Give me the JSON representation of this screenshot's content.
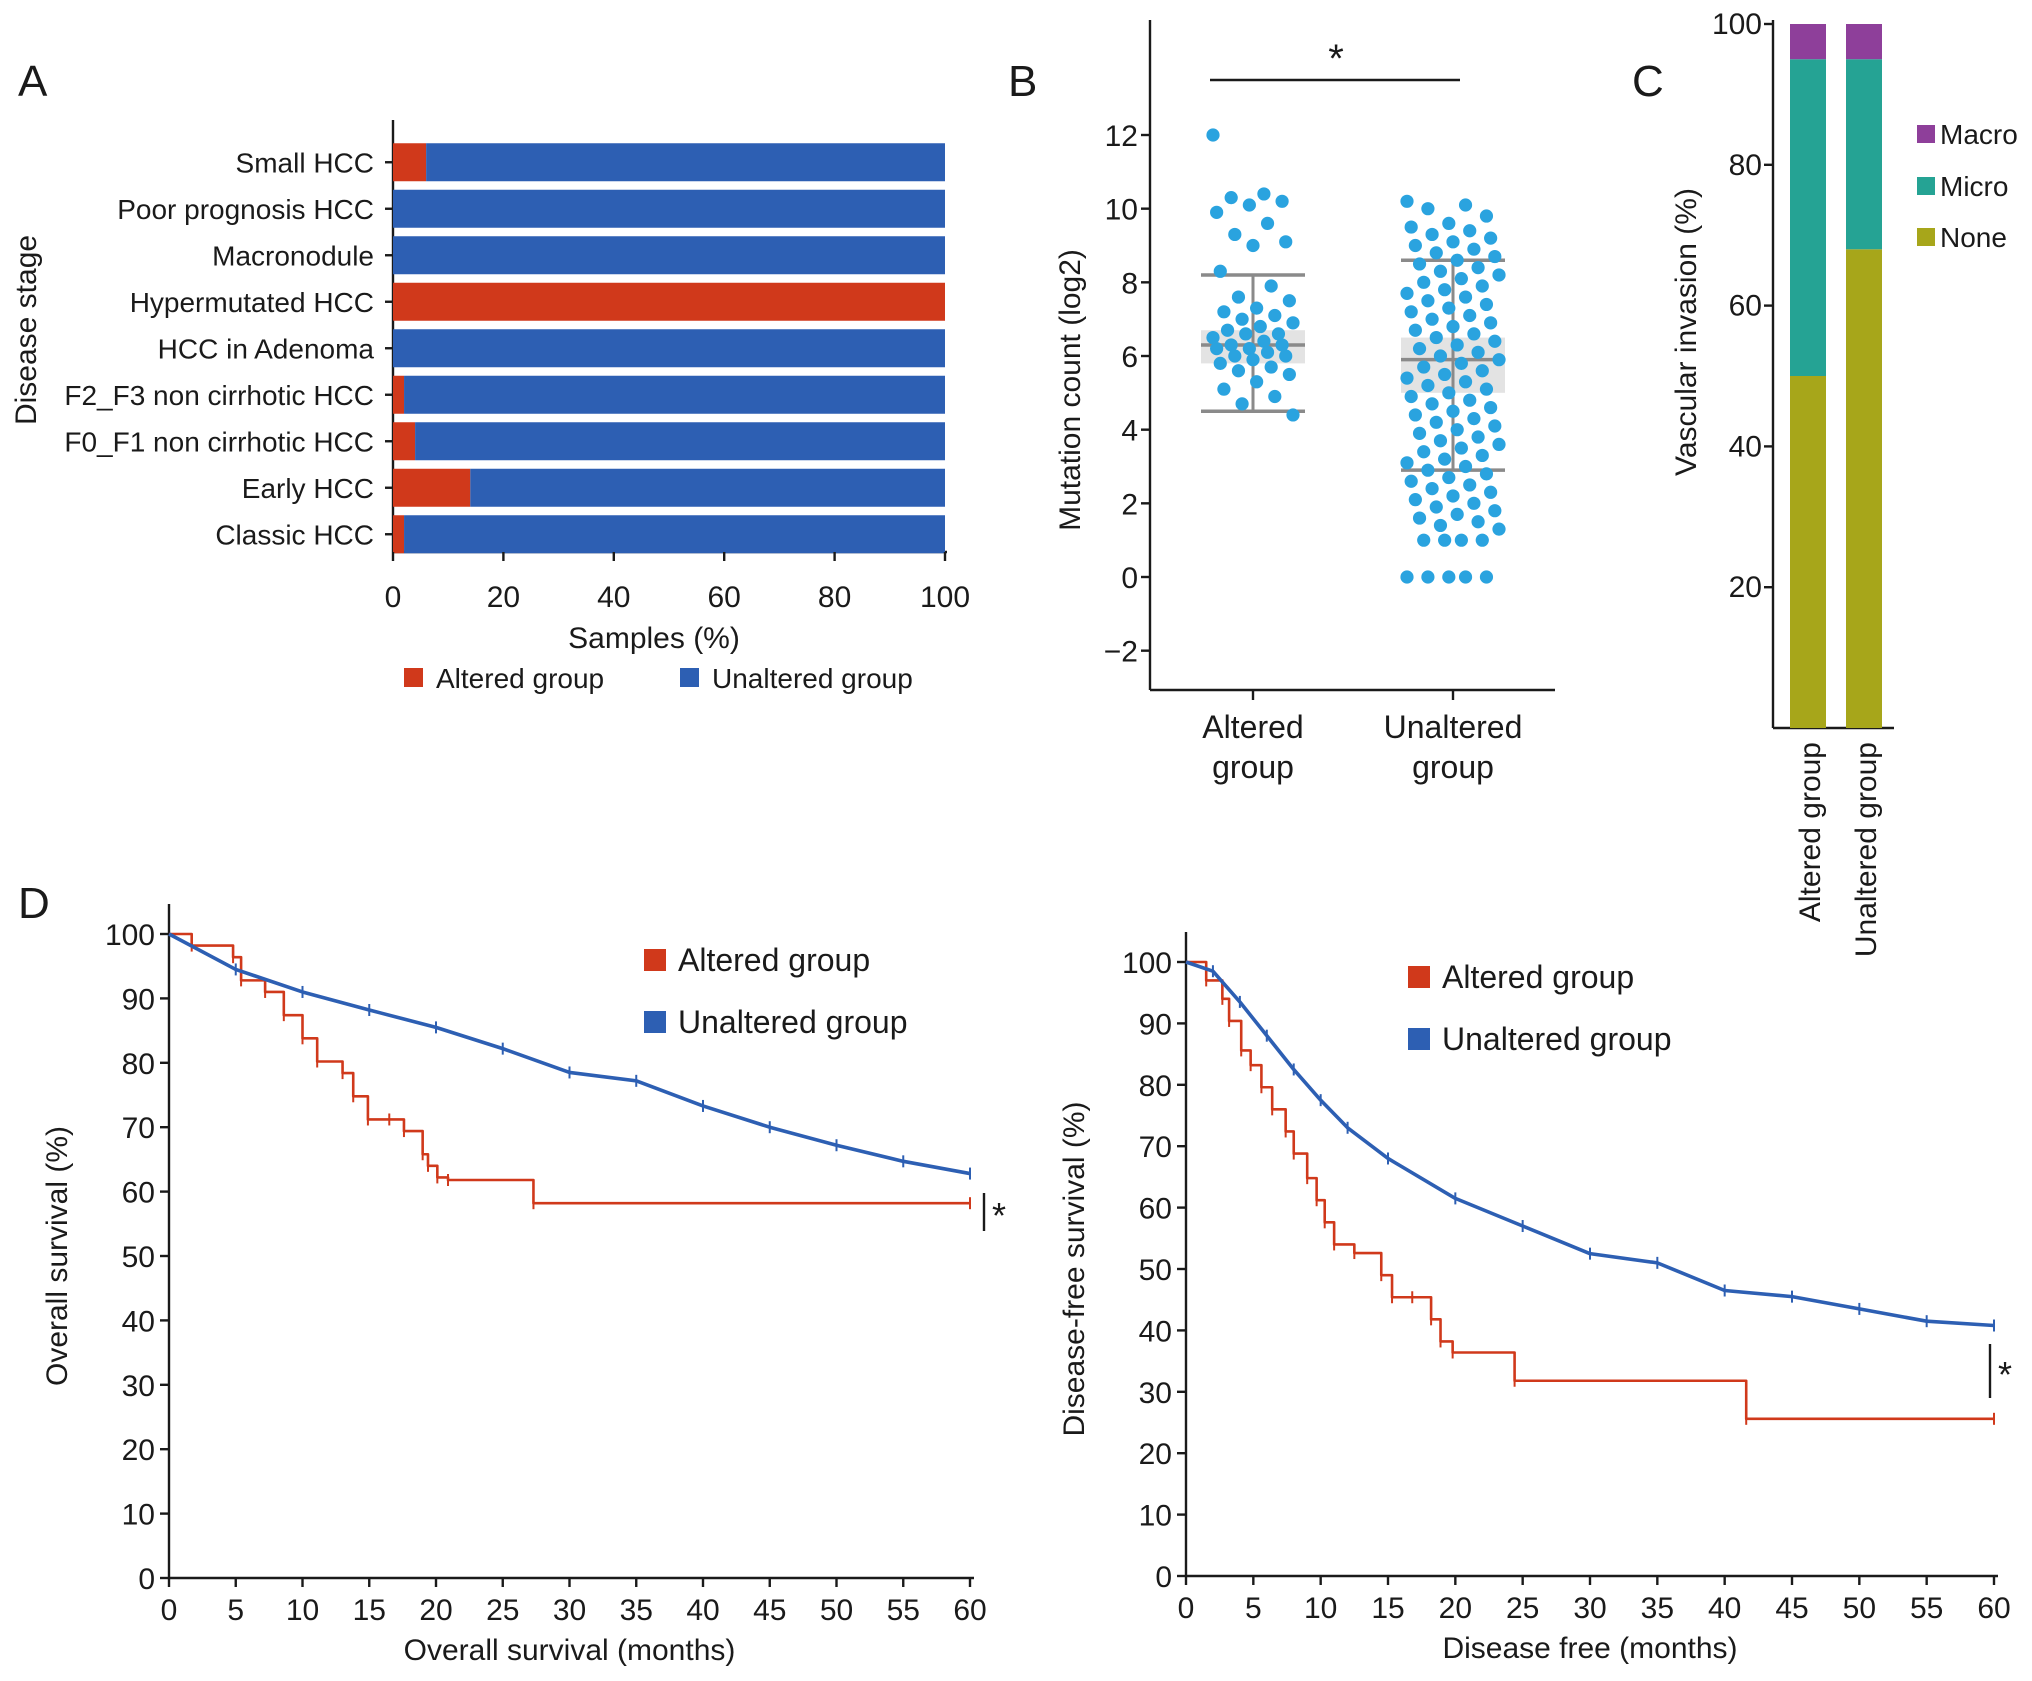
{
  "panel_labels": [
    "A",
    "B",
    "C",
    "D"
  ],
  "colors": {
    "altered": "#d0391b",
    "unaltered": "#2d5fb3",
    "dots": "#2aa3df",
    "macro": "#8e3f9a",
    "micro": "#25a394",
    "none": "#a7a61a"
  },
  "chart_data": [
    {
      "panel": "A",
      "type": "bar",
      "orientation": "horizontal",
      "stacked": true,
      "categories": [
        "Small HCC",
        "Poor prognosis HCC",
        "Macronodule",
        "Hypermutated HCC",
        "HCC in Adenoma",
        "F2_F3 non cirrhotic HCC",
        "F0_F1 non cirrhotic HCC",
        "Early HCC",
        "Classic HCC"
      ],
      "series": [
        {
          "name": "Altered group",
          "values": [
            6,
            0,
            0,
            100,
            0,
            2,
            4,
            14,
            2
          ]
        },
        {
          "name": "Unaltered group",
          "values": [
            94,
            100,
            100,
            0,
            100,
            98,
            96,
            86,
            98
          ]
        }
      ],
      "xlabel": "Samples (%)",
      "ylabel": "Disease stage",
      "xlim": [
        0,
        100
      ],
      "xticks": [
        "0",
        "20",
        "40",
        "60",
        "80",
        "100"
      ],
      "legend": [
        "Altered group",
        "Unaltered group"
      ],
      "legend_position": "bottom"
    },
    {
      "panel": "B",
      "type": "scatter",
      "categories": [
        "Altered group",
        "Unaltered group"
      ],
      "ylabel": "Mutation count (log2)",
      "ylim": [
        -3,
        15
      ],
      "yticks": [
        "−2",
        "0",
        "2",
        "4",
        "6",
        "8",
        "10",
        "12"
      ],
      "significance": "*",
      "summary": [
        {
          "group": "Altered group",
          "median": 6.3,
          "ci": [
            5.8,
            6.7
          ],
          "whisker": [
            4.5,
            8.2
          ]
        },
        {
          "group": "Unaltered group",
          "median": 5.9,
          "ci": [
            5.0,
            6.5
          ],
          "whisker": [
            2.9,
            8.6
          ]
        }
      ],
      "series": [
        {
          "name": "Altered group",
          "values": [
            12.0,
            10.4,
            10.3,
            10.2,
            10.1,
            9.9,
            9.6,
            9.3,
            9.1,
            9.0,
            8.3,
            7.9,
            7.6,
            7.5,
            7.3,
            7.2,
            7.1,
            7.0,
            6.9,
            6.8,
            6.7,
            6.6,
            6.6,
            6.5,
            6.4,
            6.3,
            6.3,
            6.2,
            6.2,
            6.1,
            6.0,
            6.0,
            5.9,
            5.8,
            5.7,
            5.6,
            5.5,
            5.3,
            5.1,
            4.9,
            4.7,
            4.4
          ]
        },
        {
          "name": "Unaltered group",
          "values": [
            10.2,
            10.1,
            10.0,
            9.8,
            9.6,
            9.5,
            9.4,
            9.3,
            9.2,
            9.1,
            9.0,
            8.9,
            8.8,
            8.7,
            8.6,
            8.5,
            8.4,
            8.3,
            8.2,
            8.1,
            8.0,
            7.9,
            7.8,
            7.7,
            7.6,
            7.5,
            7.4,
            7.3,
            7.2,
            7.1,
            7.0,
            6.9,
            6.8,
            6.7,
            6.6,
            6.5,
            6.4,
            6.3,
            6.2,
            6.1,
            6.0,
            5.9,
            5.8,
            5.7,
            5.6,
            5.5,
            5.4,
            5.3,
            5.2,
            5.1,
            5.0,
            4.9,
            4.8,
            4.7,
            4.6,
            4.5,
            4.4,
            4.3,
            4.2,
            4.1,
            4.0,
            3.9,
            3.8,
            3.7,
            3.6,
            3.5,
            3.4,
            3.3,
            3.2,
            3.1,
            3.0,
            2.9,
            2.8,
            2.7,
            2.6,
            2.5,
            2.4,
            2.3,
            2.2,
            2.1,
            2.0,
            1.9,
            1.8,
            1.7,
            1.6,
            1.5,
            1.4,
            1.3,
            1.0,
            1.0,
            1.0,
            1.0,
            0.0,
            0.0,
            0.0,
            0.0,
            0.0
          ]
        }
      ]
    },
    {
      "panel": "C",
      "type": "bar",
      "stacked": true,
      "categories": [
        "Altered group",
        "Unaltered group"
      ],
      "series": [
        {
          "name": "None",
          "values": [
            50,
            68
          ]
        },
        {
          "name": "Micro",
          "values": [
            45,
            27
          ]
        },
        {
          "name": "Macro",
          "values": [
            5,
            5
          ]
        }
      ],
      "ylabel": "Vascular invasion (%)",
      "ylim": [
        0,
        100
      ],
      "yticks": [
        "20",
        "40",
        "60",
        "80",
        "100"
      ],
      "legend": [
        "Macro",
        "Micro",
        "None"
      ],
      "legend_position": "right"
    },
    {
      "panel": "D-left",
      "type": "line",
      "step": true,
      "xlabel": "Overall survival (months)",
      "ylabel": "Overall survival (%)",
      "xlim": [
        0,
        60
      ],
      "ylim": [
        0,
        100
      ],
      "xticks": [
        "0",
        "5",
        "10",
        "15",
        "20",
        "25",
        "30",
        "35",
        "40",
        "45",
        "50",
        "55",
        "60"
      ],
      "yticks": [
        "0",
        "10",
        "20",
        "30",
        "40",
        "50",
        "60",
        "70",
        "80",
        "90",
        "100"
      ],
      "significance": "*",
      "legend": [
        "Altered group",
        "Unaltered group"
      ],
      "legend_position": "top-right",
      "series": [
        {
          "name": "Altered group",
          "x": [
            0,
            1.7,
            4.8,
            5.4,
            7.2,
            8.6,
            10,
            11.1,
            13,
            13.8,
            14.9,
            16.5,
            17.6,
            19,
            19.4,
            20.1,
            20.9,
            27.3,
            60
          ],
          "y": [
            100,
            98.2,
            96.4,
            92.8,
            91,
            87.4,
            83.8,
            80.2,
            78.4,
            74.8,
            71.2,
            71.2,
            69.4,
            65.8,
            64,
            62.2,
            61.8,
            58.2,
            58.2
          ]
        },
        {
          "name": "Unaltered group",
          "x": [
            0,
            5,
            10,
            15,
            20,
            25,
            30,
            35,
            40,
            45,
            50,
            55,
            60
          ],
          "y": [
            100,
            94.5,
            91,
            88.2,
            85.5,
            82.2,
            78.5,
            77.2,
            73.3,
            70,
            67.2,
            64.7,
            62.8
          ]
        }
      ]
    },
    {
      "panel": "D-right",
      "type": "line",
      "step": true,
      "xlabel": "Disease free (months)",
      "ylabel": "Disease-free survival (%)",
      "xlim": [
        0,
        60
      ],
      "ylim": [
        0,
        100
      ],
      "xticks": [
        "0",
        "5",
        "10",
        "15",
        "20",
        "25",
        "30",
        "35",
        "40",
        "45",
        "50",
        "55",
        "60"
      ],
      "yticks": [
        "0",
        "10",
        "20",
        "30",
        "40",
        "50",
        "60",
        "70",
        "80",
        "90",
        "100"
      ],
      "significance": "*",
      "legend": [
        "Altered group",
        "Unaltered group"
      ],
      "legend_position": "top-right",
      "series": [
        {
          "name": "Altered group",
          "x": [
            0,
            1.5,
            2.7,
            3.2,
            4.1,
            4.8,
            5.6,
            6.4,
            7.4,
            8,
            9,
            9.7,
            10.3,
            11,
            12.5,
            14.5,
            15.3,
            16.8,
            18.2,
            18.9,
            19.8,
            24.4,
            41.6,
            60
          ],
          "y": [
            100,
            97,
            94,
            90.4,
            85.6,
            83.2,
            79.6,
            76,
            72.4,
            68.8,
            64.8,
            61.2,
            57.6,
            54,
            52.6,
            49,
            45.4,
            45.4,
            41.8,
            38.2,
            36.4,
            31.8,
            25.6,
            25.6
          ]
        },
        {
          "name": "Unaltered group",
          "x": [
            0,
            2,
            4,
            6,
            8,
            10,
            12,
            15,
            20,
            25,
            30,
            35,
            40,
            45,
            50,
            55,
            60
          ],
          "y": [
            100,
            98.5,
            93.5,
            88,
            82.5,
            77.5,
            73,
            68,
            61.5,
            57,
            52.5,
            51,
            46.5,
            45.5,
            43.5,
            41.5,
            40.8
          ]
        }
      ]
    }
  ]
}
